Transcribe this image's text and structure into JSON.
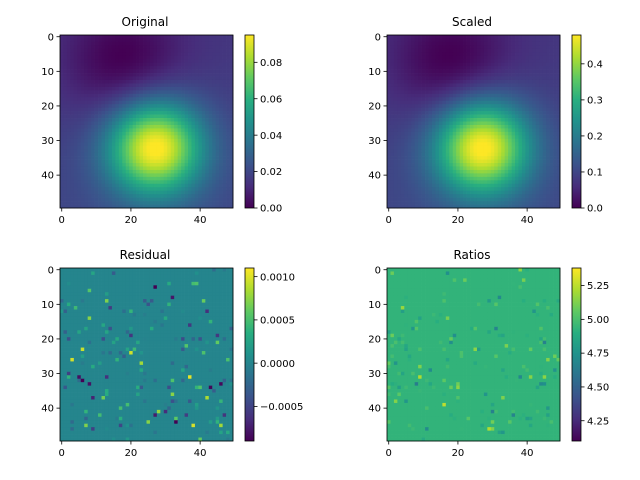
{
  "chart_data": [
    {
      "type": "heatmap",
      "title": "Original",
      "colormap": "viridis",
      "rows": 50,
      "cols": 50,
      "xlim": [
        0,
        50
      ],
      "ylim": [
        50,
        0
      ],
      "xticks": [
        0,
        20,
        40
      ],
      "yticks": [
        0,
        10,
        20,
        30,
        40
      ],
      "field": {
        "kind": "gaussian",
        "peak_xy": [
          27,
          32
        ],
        "peak_value": 0.095,
        "min_xy": [
          18,
          8
        ],
        "min_value": 0.0
      },
      "colorbar": {
        "range": [
          0.0,
          0.095
        ],
        "ticks": [
          0.0,
          0.02,
          0.04,
          0.06,
          0.08
        ],
        "tick_labels": [
          "0.00",
          "0.02",
          "0.04",
          "0.06",
          "0.08"
        ]
      }
    },
    {
      "type": "heatmap",
      "title": "Scaled",
      "colormap": "viridis",
      "rows": 50,
      "cols": 50,
      "xlim": [
        0,
        50
      ],
      "ylim": [
        50,
        0
      ],
      "xticks": [
        0,
        20,
        40
      ],
      "yticks": [
        0,
        10,
        20,
        30,
        40
      ],
      "field": {
        "kind": "gaussian",
        "peak_xy": [
          27,
          32
        ],
        "peak_value": 0.48,
        "min_xy": [
          18,
          8
        ],
        "min_value": 0.0
      },
      "colorbar": {
        "range": [
          0.0,
          0.48
        ],
        "ticks": [
          0.0,
          0.1,
          0.2,
          0.3,
          0.4
        ],
        "tick_labels": [
          "0.0",
          "0.1",
          "0.2",
          "0.3",
          "0.4"
        ]
      }
    },
    {
      "type": "heatmap",
      "title": "Residual",
      "colormap": "viridis",
      "rows": 50,
      "cols": 50,
      "xlim": [
        0,
        50
      ],
      "ylim": [
        50,
        0
      ],
      "xticks": [
        0,
        20,
        40
      ],
      "yticks": [
        0,
        10,
        20,
        30,
        40
      ],
      "field": {
        "kind": "sparse-noise",
        "base_value": 0.0,
        "amplitude": 0.001
      },
      "colorbar": {
        "range": [
          -0.0009,
          0.0011
        ],
        "ticks": [
          0.001,
          0.0005,
          0.0,
          -0.0005
        ],
        "tick_labels": [
          "0.0010",
          "0.0005",
          "0.0000",
          "−0.0005"
        ]
      }
    },
    {
      "type": "heatmap",
      "title": "Ratios",
      "colormap": "viridis",
      "rows": 50,
      "cols": 50,
      "xlim": [
        0,
        50
      ],
      "ylim": [
        50,
        0
      ],
      "xticks": [
        0,
        20,
        40
      ],
      "yticks": [
        0,
        10,
        20,
        30,
        40
      ],
      "field": {
        "kind": "sparse-noise",
        "base_value": 4.93,
        "amplitude": 0.3
      },
      "colorbar": {
        "range": [
          4.1,
          5.38
        ],
        "ticks": [
          5.25,
          5.0,
          4.75,
          4.5,
          4.25
        ],
        "tick_labels": [
          "5.25",
          "5.00",
          "4.75",
          "4.50",
          "4.25"
        ]
      }
    }
  ]
}
